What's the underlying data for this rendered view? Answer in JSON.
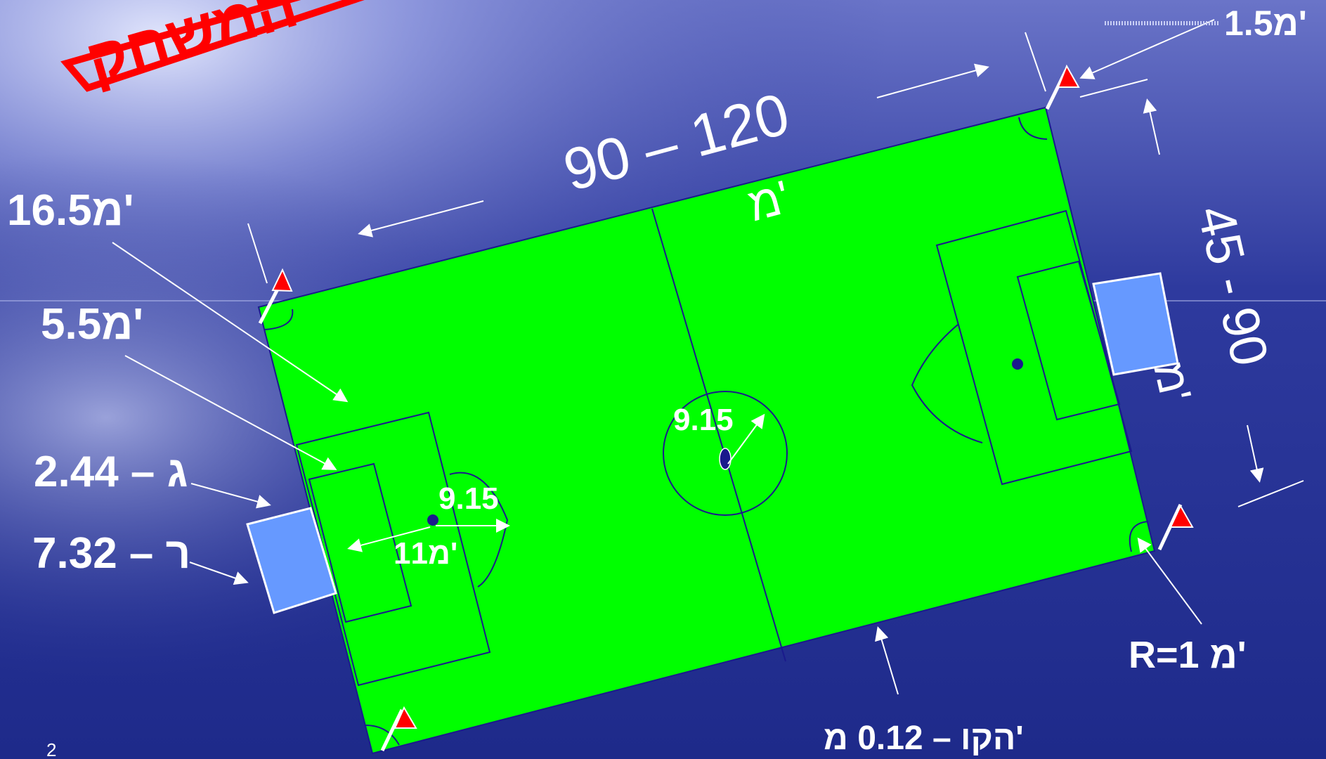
{
  "title": "המשחק",
  "slide_number": "2",
  "labels": {
    "length_range": "90 – 120",
    "length_unit": "מ'",
    "width_range": "45 - 90",
    "width_unit": "מ'",
    "corner_flag_height": "1.5מ'",
    "penalty_area": "16.5מ'",
    "goal_area": "5.5מ'",
    "goal_height": "ג – 2.44",
    "goal_width": "ר – 7.32",
    "penalty_spot": "11מ'",
    "penalty_arc_radius": "9.15",
    "center_circle_radius": "9.15",
    "corner_arc": "R=1 מ'",
    "line_width": "הקו – 0.12 מ'"
  },
  "colors": {
    "pitch": "#00ff00",
    "lines": "#1a1a8c",
    "goal": "#6699ff",
    "flag": "#ff0000",
    "title": "#ff0000",
    "text": "#ffffff"
  }
}
